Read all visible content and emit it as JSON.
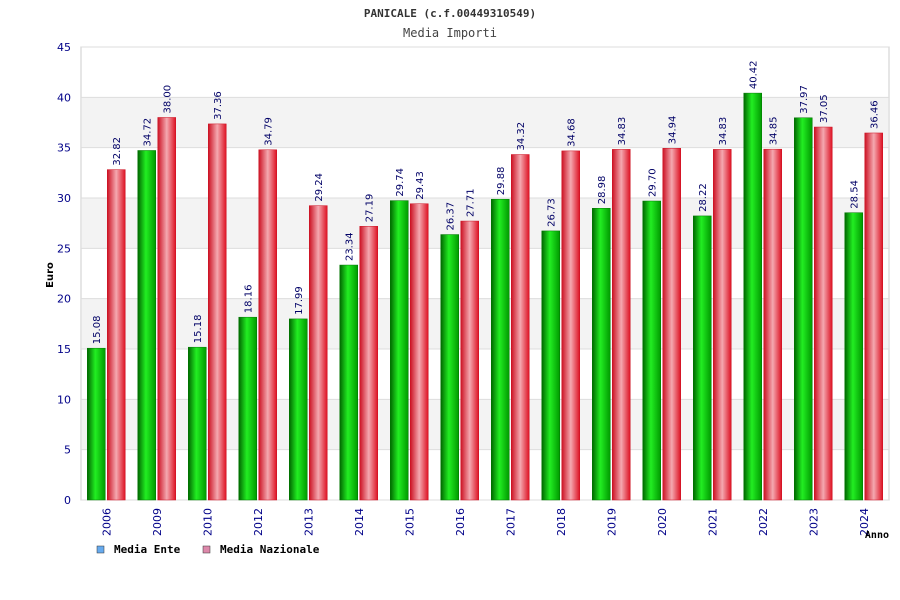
{
  "chart_data": {
    "type": "bar",
    "title": "PANICALE (c.f.00449310549)",
    "subtitle": "Media Importi",
    "ylabel": "Euro",
    "xlabel": "Anno",
    "ylim": [
      0,
      45
    ],
    "yticks": [
      0,
      5,
      10,
      15,
      20,
      25,
      30,
      35,
      40,
      45
    ],
    "grid": true,
    "legend_position": "bottom-left",
    "categories": [
      "2006",
      "2009",
      "2010",
      "2012",
      "2013",
      "2014",
      "2015",
      "2016",
      "2017",
      "2018",
      "2019",
      "2020",
      "2021",
      "2022",
      "2023",
      "2024"
    ],
    "series": [
      {
        "name": "Media Ente",
        "color": "#00bb00",
        "legend_color": "#66aaee",
        "values": [
          15.08,
          34.72,
          15.18,
          18.16,
          17.99,
          23.34,
          29.74,
          26.37,
          29.88,
          26.73,
          28.98,
          29.7,
          28.22,
          40.42,
          37.97,
          28.54
        ],
        "labels": [
          "15.08",
          "34.72",
          "15.18",
          "18.16",
          "17.99",
          "23.34",
          "29.74",
          "26.37",
          "29.88",
          "26.73",
          "28.98",
          "29.70",
          "28.22",
          "40.42",
          "37.97",
          "28.54"
        ]
      },
      {
        "name": "Media Nazionale",
        "color": "#ee2233",
        "legend_color": "#dd88aa",
        "values": [
          32.82,
          38.0,
          37.36,
          34.79,
          29.24,
          27.19,
          29.43,
          27.71,
          34.32,
          34.68,
          34.83,
          34.94,
          34.83,
          34.85,
          37.05,
          36.46
        ],
        "labels": [
          "32.82",
          "38.00",
          "37.36",
          "34.79",
          "29.24",
          "27.19",
          "29.43",
          "27.71",
          "34.32",
          "34.68",
          "34.83",
          "34.94",
          "34.83",
          "34.85",
          "37.05",
          "36.46"
        ]
      }
    ]
  }
}
